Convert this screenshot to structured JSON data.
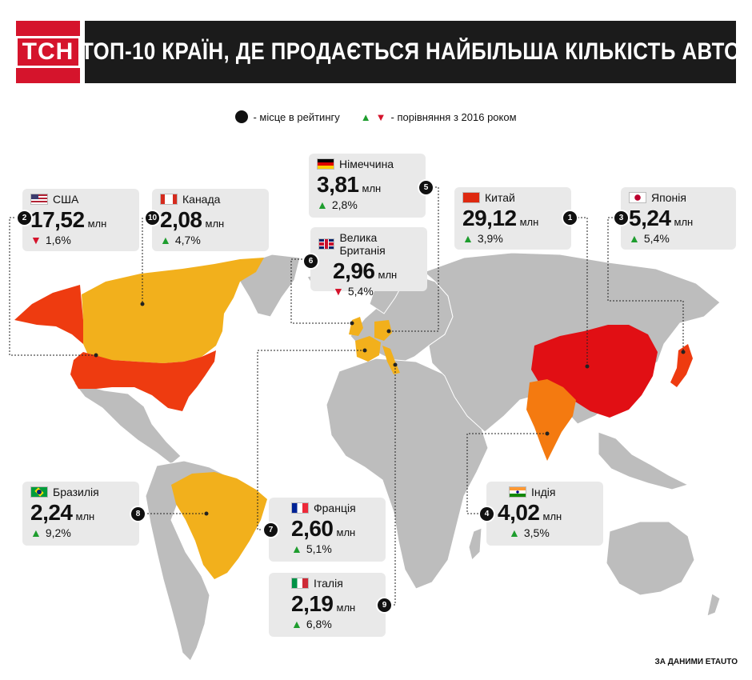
{
  "header": {
    "logo": "ТСН",
    "title": "ТОП-10 КРАЇН, ДЕ ПРОДАЄТЬСЯ НАЙБІЛЬША КІЛЬКІСТЬ АВТО"
  },
  "legend": {
    "rank_label": "- місце в рейтингу",
    "compare_label": "- порівняння з 2016 роком",
    "up_icon": "▲",
    "down_icon": "▼"
  },
  "unit": "млн",
  "colors": {
    "rank_1": "#e10f14",
    "rank_2_3": "#ee3b10",
    "rank_4": "#f47a10",
    "rank_5_10": "#f2b01c",
    "land": "#bdbdbd",
    "up": "#1e9d2e",
    "down": "#d5142c"
  },
  "countries": {
    "usa": {
      "rank": "2",
      "name": "США",
      "value": "17,52",
      "change": "1,6%",
      "dir": "down",
      "flag": "us-flag"
    },
    "canada": {
      "rank": "10",
      "name": "Канада",
      "value": "2,08",
      "change": "4,7%",
      "dir": "up",
      "flag": "ca-flag"
    },
    "germany": {
      "rank": "5",
      "name": "Німеччина",
      "value": "3,81",
      "change": "2,8%",
      "dir": "up",
      "flag": "de-flag"
    },
    "uk": {
      "rank": "6",
      "name": "Велика Британія",
      "value": "2,96",
      "change": "5,4%",
      "dir": "down",
      "flag": "gb-flag"
    },
    "china": {
      "rank": "1",
      "name": "Китай",
      "value": "29,12",
      "change": "3,9%",
      "dir": "up",
      "flag": "cn-flag"
    },
    "japan": {
      "rank": "3",
      "name": "Японія",
      "value": "5,24",
      "change": "5,4%",
      "dir": "up",
      "flag": "jp-flag"
    },
    "brazil": {
      "rank": "8",
      "name": "Бразилія",
      "value": "2,24",
      "change": "9,2%",
      "dir": "up",
      "flag": "br-flag"
    },
    "france": {
      "rank": "7",
      "name": "Франція",
      "value": "2,60",
      "change": "5,1%",
      "dir": "up",
      "flag": "fr-flag"
    },
    "italy": {
      "rank": "9",
      "name": "Італія",
      "value": "2,19",
      "change": "6,8%",
      "dir": "up",
      "flag": "it-flag"
    },
    "india": {
      "rank": "4",
      "name": "Індія",
      "value": "4,02",
      "change": "3,5%",
      "dir": "up",
      "flag": "in-flag"
    }
  },
  "source": "ЗА ДАНИМИ ETAUTO"
}
